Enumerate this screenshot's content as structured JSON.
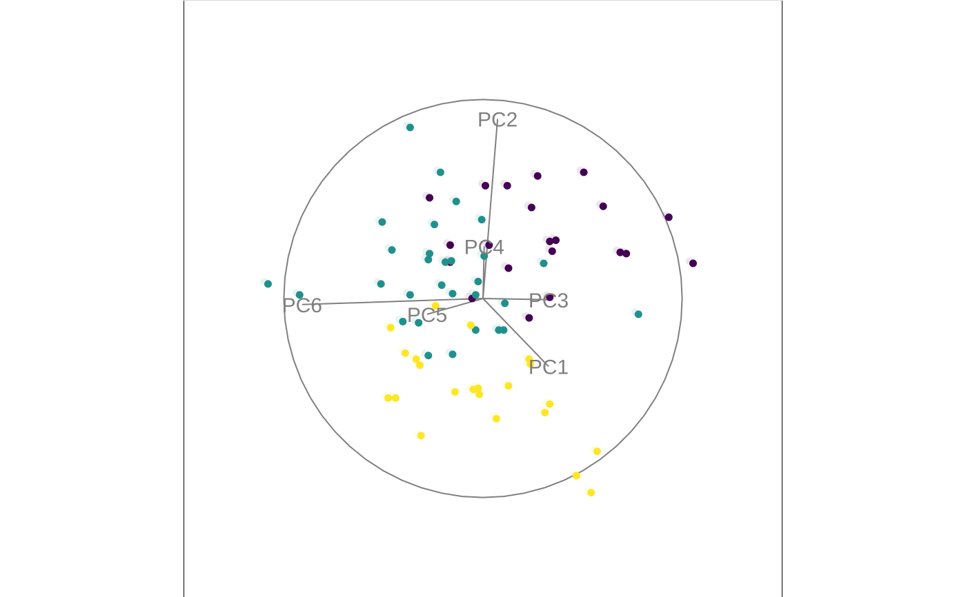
{
  "chart_data": {
    "type": "scatter",
    "title": "",
    "xlabel": "",
    "ylabel": "",
    "xlim": [
      -1.7,
      1.6
    ],
    "ylim": [
      -2.46,
      2.46
    ],
    "grid": false,
    "legend": "none",
    "projection": {
      "circle_center": [
        0.0,
        0.0
      ],
      "circle_radius": 1.64,
      "axes": [
        {
          "name": "PC1",
          "end": [
            0.54,
            -0.56
          ]
        },
        {
          "name": "PC2",
          "end": [
            0.12,
            1.48
          ]
        },
        {
          "name": "PC3",
          "end": [
            0.54,
            -0.01
          ]
        },
        {
          "name": "PC4",
          "end": [
            0.01,
            0.43
          ]
        },
        {
          "name": "PC5",
          "end": [
            -0.46,
            -0.13
          ]
        },
        {
          "name": "PC6",
          "end": [
            -1.49,
            -0.05
          ]
        }
      ]
    },
    "series": [
      {
        "color": "#440154",
        "points": [
          [
            0.02,
            0.93
          ],
          [
            0.2,
            0.93
          ],
          [
            0.45,
            1.01
          ],
          [
            0.83,
            1.04
          ],
          [
            -0.44,
            0.83
          ],
          [
            0.4,
            0.75
          ],
          [
            0.99,
            0.76
          ],
          [
            1.53,
            0.67
          ],
          [
            -0.27,
            0.44
          ],
          [
            0.05,
            0.44
          ],
          [
            0.55,
            0.47
          ],
          [
            0.6,
            0.48
          ],
          [
            -0.27,
            0.3
          ],
          [
            0.57,
            0.39
          ],
          [
            1.13,
            0.38
          ],
          [
            1.18,
            0.37
          ],
          [
            0.21,
            0.25
          ],
          [
            1.73,
            0.29
          ],
          [
            -0.09,
            0.0
          ],
          [
            0.55,
            0.01
          ],
          [
            0.38,
            -0.16
          ]
        ]
      },
      {
        "color": "#21908d",
        "points": [
          [
            -0.6,
            1.41
          ],
          [
            -0.35,
            1.04
          ],
          [
            -0.22,
            0.8
          ],
          [
            -0.83,
            0.63
          ],
          [
            -0.4,
            0.61
          ],
          [
            -0.01,
            0.65
          ],
          [
            -0.75,
            0.4
          ],
          [
            -0.44,
            0.37
          ],
          [
            -0.45,
            0.32
          ],
          [
            -0.26,
            0.31
          ],
          [
            0.01,
            0.35
          ],
          [
            -0.31,
            0.3
          ],
          [
            0.5,
            0.29
          ],
          [
            -1.77,
            0.12
          ],
          [
            -0.84,
            0.12
          ],
          [
            -0.34,
            0.11
          ],
          [
            -0.04,
            0.14
          ],
          [
            -1.51,
            0.03
          ],
          [
            -0.6,
            0.03
          ],
          [
            -0.25,
            0.04
          ],
          [
            -0.06,
            0.03
          ],
          [
            0.18,
            -0.04
          ],
          [
            1.28,
            -0.13
          ],
          [
            -0.66,
            -0.19
          ],
          [
            -0.53,
            -0.2
          ],
          [
            -0.06,
            -0.26
          ],
          [
            0.13,
            -0.26
          ],
          [
            0.17,
            -0.26
          ],
          [
            -0.45,
            -0.47
          ],
          [
            -0.25,
            -0.46
          ]
        ]
      },
      {
        "color": "#fde725",
        "points": [
          [
            -0.39,
            -0.06
          ],
          [
            -0.76,
            -0.24
          ],
          [
            -0.1,
            -0.22
          ],
          [
            0.38,
            -0.5
          ],
          [
            0.39,
            -0.54
          ],
          [
            -0.64,
            -0.45
          ],
          [
            -0.55,
            -0.5
          ],
          [
            -0.52,
            -0.55
          ],
          [
            0.21,
            -0.72
          ],
          [
            -0.23,
            -0.77
          ],
          [
            -0.08,
            -0.75
          ],
          [
            -0.04,
            -0.74
          ],
          [
            -0.03,
            -0.79
          ],
          [
            0.55,
            -0.87
          ],
          [
            -0.78,
            -0.82
          ],
          [
            -0.72,
            -0.82
          ],
          [
            0.51,
            -0.94
          ],
          [
            0.11,
            -0.99
          ],
          [
            -0.51,
            -1.13
          ],
          [
            0.94,
            -1.26
          ],
          [
            0.77,
            -1.46
          ],
          [
            0.89,
            -1.6
          ]
        ]
      }
    ]
  }
}
